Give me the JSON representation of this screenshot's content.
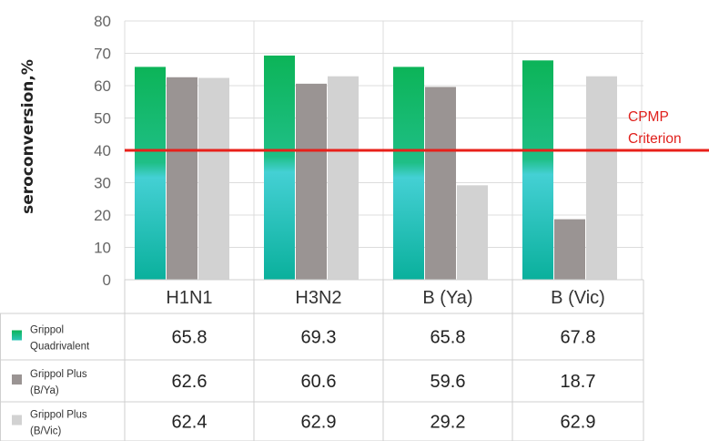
{
  "chart_data": {
    "type": "bar",
    "ylabel": "seroconversion,%",
    "ylim": [
      0,
      80
    ],
    "yticks": [
      0,
      10,
      20,
      30,
      40,
      50,
      60,
      70,
      80
    ],
    "grid": true,
    "categories": [
      "H1N1",
      "H3N2",
      "B (Ya)",
      "B (Vic)"
    ],
    "series": [
      {
        "name": "Grippol Quadrivalent",
        "legend_lines": [
          "Grippol",
          "Quadrivalent"
        ],
        "color": "#12b869",
        "color_low": "#3ec9c9",
        "values": [
          65.8,
          69.3,
          65.8,
          67.8
        ],
        "labels": [
          "65.8",
          "69.3",
          "65.8",
          "67.8"
        ]
      },
      {
        "name": "Grippol Plus (B/Ya)",
        "legend_lines": [
          "Grippol Plus",
          "(B/Ya)"
        ],
        "color": "#9a9493",
        "values": [
          62.6,
          60.6,
          59.6,
          18.7
        ],
        "labels": [
          "62.6",
          "60.6",
          "59.6",
          "18.7"
        ]
      },
      {
        "name": "Grippol Plus (B/Vic)",
        "legend_lines": [
          "Grippol Plus",
          "(B/Vic)"
        ],
        "color": "#d2d2d2",
        "values": [
          62.4,
          62.9,
          29.2,
          62.9
        ],
        "labels": [
          "62.4",
          "62.9",
          "29.2",
          "62.9"
        ]
      }
    ],
    "reference_line": {
      "value": 40,
      "label_lines": [
        "CPMP",
        "Criterion"
      ],
      "color": "#e8201a"
    },
    "data_table": true
  }
}
